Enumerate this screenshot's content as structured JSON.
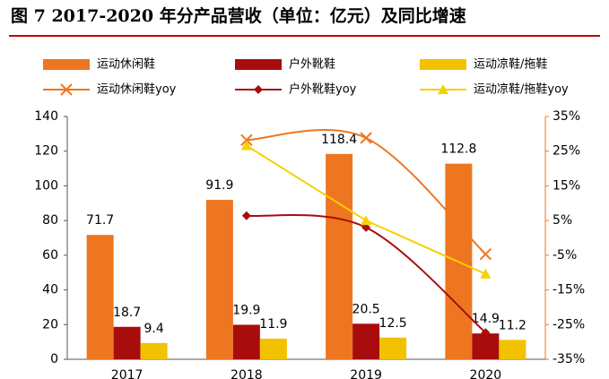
{
  "chart_data": {
    "type": "bar",
    "title": "图 7 2017-2020 年分产品营收（单位：亿元）及同比增速",
    "categories": [
      "2017",
      "2018",
      "2019",
      "2020"
    ],
    "ylim": [
      0,
      140
    ],
    "yticks": [
      0,
      20,
      40,
      60,
      80,
      100,
      120,
      140
    ],
    "y2lim": [
      -35,
      35
    ],
    "y2ticks": [
      {
        "value": -35,
        "label": "-35%"
      },
      {
        "value": -25,
        "label": "-25%"
      },
      {
        "value": -15,
        "label": "-15%"
      },
      {
        "value": -5,
        "label": "-5%"
      },
      {
        "value": 5,
        "label": "5%"
      },
      {
        "value": 15,
        "label": "15%"
      },
      {
        "value": 25,
        "label": "25%"
      },
      {
        "value": 35,
        "label": "35%"
      }
    ],
    "series": [
      {
        "name": "运动休闲鞋",
        "type": "bar",
        "color": "#ee7621",
        "values": [
          71.7,
          91.9,
          118.4,
          112.8
        ]
      },
      {
        "name": "户外靴鞋",
        "type": "bar",
        "color": "#a80c0c",
        "values": [
          18.7,
          19.9,
          20.5,
          14.9
        ]
      },
      {
        "name": "运动凉鞋/拖鞋",
        "type": "bar",
        "color": "#f2c200",
        "values": [
          9.4,
          11.9,
          12.5,
          11.2
        ]
      },
      {
        "name": "运动休闲鞋yoy",
        "type": "line",
        "axis": "y2",
        "marker": "x",
        "smooth": true,
        "color": "#ee7621",
        "values": [
          null,
          28.2,
          28.8,
          -4.7
        ]
      },
      {
        "name": "户外靴鞋yoy",
        "type": "line",
        "axis": "y2",
        "marker": "diamond",
        "smooth": true,
        "color": "#a80c0c",
        "values": [
          null,
          6.4,
          3.0,
          -27.3
        ]
      },
      {
        "name": "运动凉鞋/拖鞋yoy",
        "type": "line",
        "axis": "y2",
        "marker": "triangle",
        "smooth": false,
        "color": "#f7d000",
        "values": [
          null,
          26.6,
          5.0,
          -10.4
        ]
      }
    ]
  }
}
